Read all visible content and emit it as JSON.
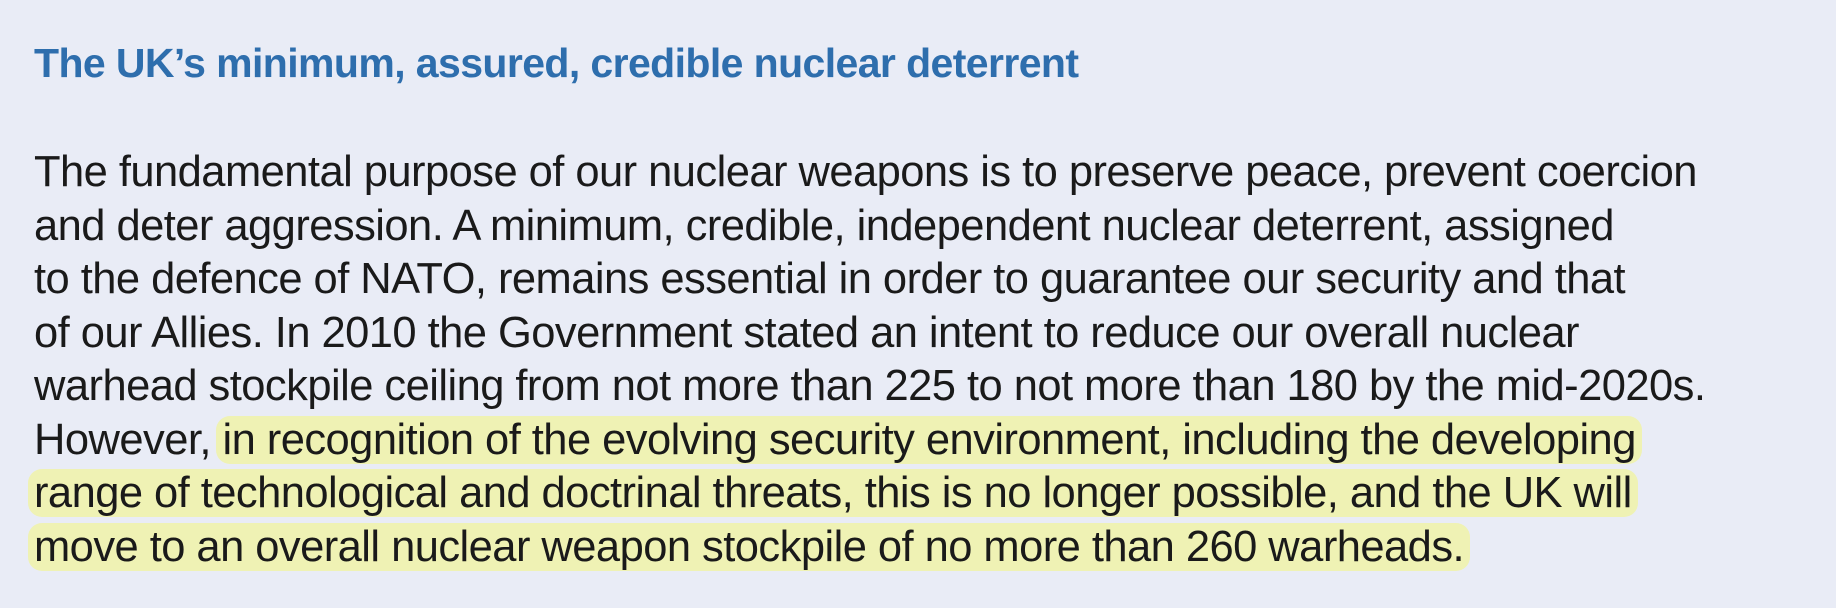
{
  "heading": "The UK’s minimum, assured, credible nuclear deterrent",
  "paragraph": {
    "lines": [
      "The fundamental purpose of our nuclear weapons is to preserve peace, prevent coercion",
      "and deter aggression. A minimum, credible, independent nuclear deterrent, assigned",
      "to the defence of NATO, remains essential in order to guarantee our security and that",
      "of our Allies. In 2010 the Government stated an intent to reduce our overall nuclear",
      "warhead stockpile ceiling from not more than 225 to not more than 180 by the mid-2020s."
    ],
    "line6_plain": "However, ",
    "line6_highlight": "in recognition of the evolving security environment, including the developing",
    "line7_highlight": "range of technological and doctrinal threats, this is no longer possible, and the UK will",
    "line8_highlight": "move to an overall nuclear weapon stockpile of no more than 260 warheads."
  },
  "highlight_color": "#eff2b4",
  "heading_color": "#2e6ead",
  "background_color": "#e9ecf6"
}
